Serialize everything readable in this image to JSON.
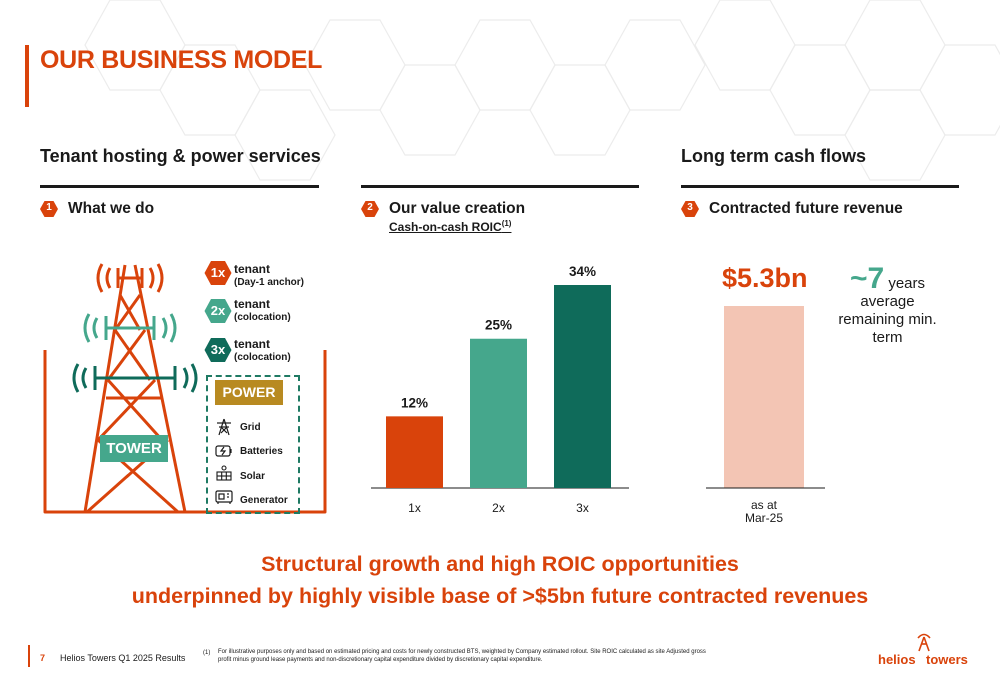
{
  "page_title": "OUR BUSINESS MODEL",
  "sections": {
    "left_heading": "Tenant hosting & power services",
    "right_heading": "Long term cash flows"
  },
  "steps": [
    {
      "num": "1",
      "label": "What we do"
    },
    {
      "num": "2",
      "label": "Our value creation"
    },
    {
      "num": "3",
      "label": "Contracted future revenue"
    }
  ],
  "roic": {
    "label": "Cash-on-cash ROIC",
    "footnote_ref": "(1)"
  },
  "tenants": [
    {
      "badge": "1x",
      "title": "tenant",
      "sub": "(Day-1 anchor)",
      "color": "#d9430b"
    },
    {
      "badge": "2x",
      "title": "tenant",
      "sub": "(colocation)",
      "color": "#45a78c"
    },
    {
      "badge": "3x",
      "title": "tenant",
      "sub": "(colocation)",
      "color": "#0f6b5a"
    }
  ],
  "tower_label": "TOWER",
  "power": {
    "title": "POWER",
    "items": [
      {
        "icon": "grid-pylon-icon",
        "label": "Grid"
      },
      {
        "icon": "battery-icon",
        "label": "Batteries"
      },
      {
        "icon": "solar-panel-icon",
        "label": "Solar"
      },
      {
        "icon": "generator-icon",
        "label": "Generator"
      }
    ]
  },
  "chart_data": {
    "type": "bar",
    "categories": [
      "1x",
      "2x",
      "3x"
    ],
    "values": [
      12,
      25,
      34
    ],
    "value_labels": [
      "12%",
      "25%",
      "34%"
    ],
    "colors": [
      "#d9430b",
      "#45a78c",
      "#0f6b5a"
    ],
    "ylim": [
      0,
      40
    ]
  },
  "revenue": {
    "value": "$5.3bn",
    "x_label_line1": "as at",
    "x_label_line2": "Mar-25",
    "bar_color": "#f3c5b4"
  },
  "term": {
    "number": "~7",
    "unit": "years",
    "line1": "average",
    "line2": "remaining min.",
    "line3": "term"
  },
  "headline": {
    "line1": "Structural growth and high ROIC opportunities",
    "line2": "underpinned by highly visible base of >$5bn future contracted revenues"
  },
  "footer": {
    "page_number": "7",
    "title": "Helios Towers Q1 2025 Results",
    "footnote_num": "(1)",
    "footnote": "For illustrative purposes only and based on estimated pricing and costs for newly constructed BTS, weighted by Company estimated rollout. Site ROIC calculated as site Adjusted gross profit minus ground lease payments and non-discretionary capital expenditure divided by discretionary capital expenditure.",
    "logo_text_1": "helios",
    "logo_text_2": "towers"
  },
  "colors": {
    "orange": "#d9430b",
    "teal": "#45a78c",
    "dark_teal": "#0f6b5a",
    "gold": "#b88a21"
  }
}
